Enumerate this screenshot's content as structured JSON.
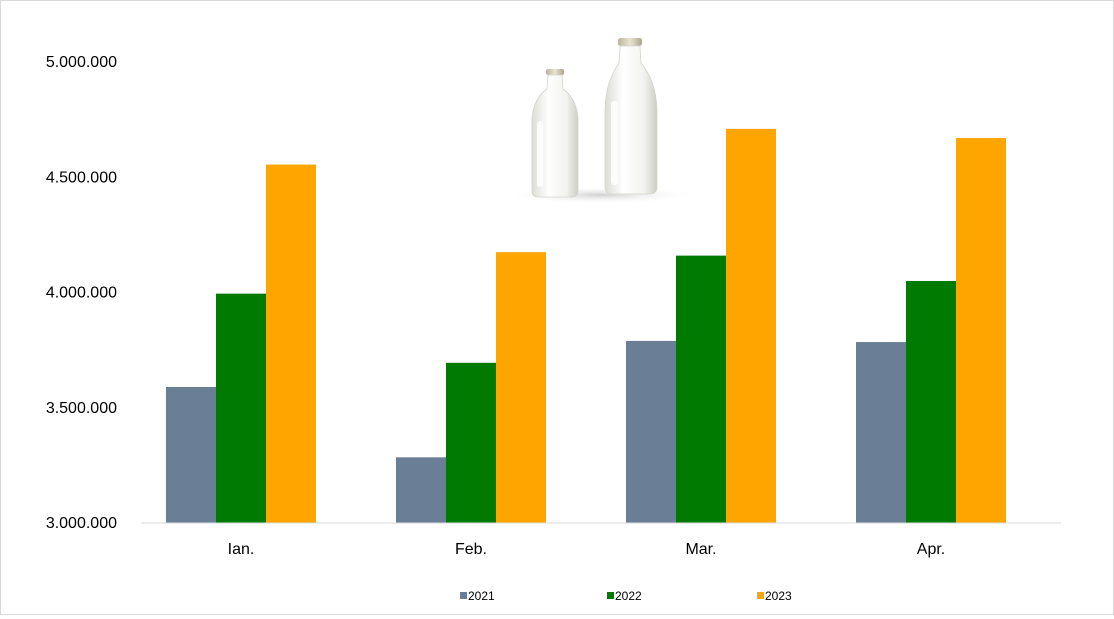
{
  "chart_data": {
    "type": "bar",
    "title": "",
    "xlabel": "",
    "ylabel": "",
    "categories": [
      "Ian.",
      "Feb.",
      "Mar.",
      "Apr."
    ],
    "series": [
      {
        "name": "2021",
        "color": "#6a7f96",
        "values": [
          3590000,
          3285000,
          3790000,
          3785000
        ]
      },
      {
        "name": "2022",
        "color": "#007a00",
        "values": [
          3995000,
          3695000,
          4160000,
          4050000
        ]
      },
      {
        "name": "2023",
        "color": "#ffa500",
        "values": [
          4555000,
          4175000,
          4710000,
          4670000
        ]
      }
    ],
    "ylim": [
      3000000,
      5000000
    ],
    "yticks": [
      3000000,
      3500000,
      4000000,
      4500000,
      5000000
    ],
    "ytick_labels": [
      "3.000.000",
      "3.500.000",
      "4.000.000",
      "4.500.000",
      "5.000.000"
    ],
    "grid": false,
    "legend_position": "bottom",
    "decoration": "milk-bottles"
  }
}
